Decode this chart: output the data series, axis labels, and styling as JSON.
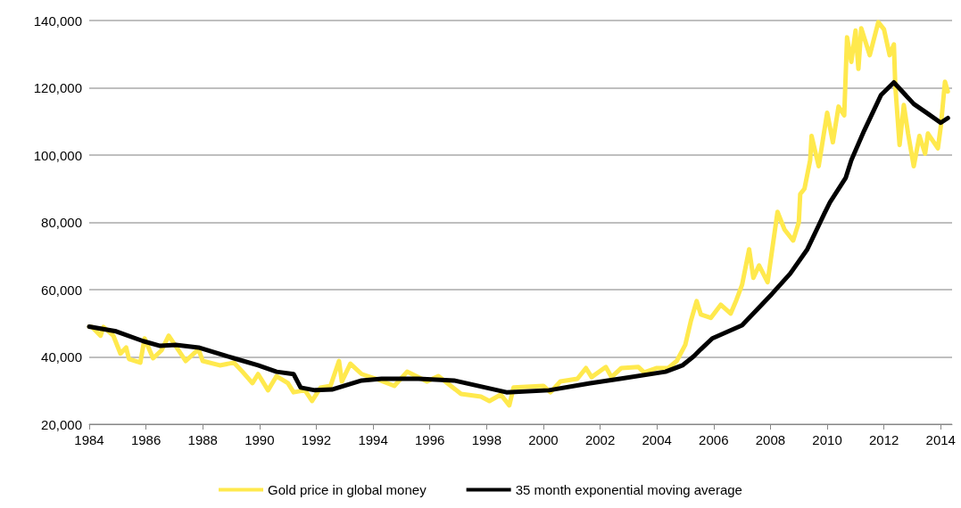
{
  "chart_data": {
    "type": "line",
    "xlim": [
      1984,
      2014.4
    ],
    "xticks": [
      1984,
      1986,
      1988,
      1990,
      1992,
      1994,
      1996,
      1998,
      2000,
      2002,
      2004,
      2006,
      2008,
      2010,
      2012,
      2014
    ],
    "ylim": [
      20000,
      140000
    ],
    "yticks": [
      {
        "value": 20000,
        "label": "20,000"
      },
      {
        "value": 40000,
        "label": "40,000"
      },
      {
        "value": 60000,
        "label": "60,000"
      },
      {
        "value": 80000,
        "label": "80,000"
      },
      {
        "value": 100000,
        "label": "100,000"
      },
      {
        "value": 120000,
        "label": "120,000"
      },
      {
        "value": 140000,
        "label": "140,000"
      }
    ],
    "grid": "y",
    "legend": "bottom",
    "marker": "none",
    "line_style": "solid",
    "series": [
      {
        "name": "Gold price in global money",
        "color": "#ffe94d",
        "x": [
          1984.0,
          1984.1,
          1984.4,
          1984.5,
          1984.85,
          1985.1,
          1985.3,
          1985.4,
          1985.8,
          1985.95,
          1986.25,
          1986.55,
          1986.8,
          1987.4,
          1987.85,
          1988.0,
          1988.6,
          1989.1,
          1989.4,
          1989.75,
          1989.95,
          1990.3,
          1990.6,
          1991.0,
          1991.2,
          1991.6,
          1991.85,
          1992.15,
          1992.5,
          1992.8,
          1992.9,
          1993.2,
          1993.6,
          1994.1,
          1994.75,
          1995.2,
          1995.9,
          1996.3,
          1997.1,
          1997.8,
          1998.1,
          1998.5,
          1998.8,
          1998.95,
          2000.0,
          2000.25,
          2000.6,
          2001.2,
          2001.5,
          2001.7,
          2002.2,
          2002.4,
          2002.75,
          2003.35,
          2003.55,
          2004.0,
          2004.4,
          2004.7,
          2005.0,
          2005.2,
          2005.4,
          2005.55,
          2005.9,
          2006.25,
          2006.6,
          2006.8,
          2007.0,
          2007.25,
          2007.4,
          2007.6,
          2007.9,
          2008.05,
          2008.25,
          2008.5,
          2008.8,
          2009.0,
          2009.05,
          2009.2,
          2009.4,
          2009.45,
          2009.7,
          2010.0,
          2010.2,
          2010.4,
          2010.6,
          2010.7,
          2010.85,
          2011.0,
          2011.1,
          2011.2,
          2011.5,
          2011.8,
          2012.0,
          2012.2,
          2012.35,
          2012.4,
          2012.55,
          2012.7,
          2012.85,
          2013.05,
          2013.25,
          2013.45,
          2013.55,
          2013.9,
          2014.0,
          2014.15,
          2014.25
        ],
        "values": [
          49000,
          48900,
          46300,
          48900,
          46300,
          41000,
          42800,
          39400,
          38300,
          45500,
          39600,
          42000,
          46300,
          38800,
          42300,
          38800,
          37500,
          38300,
          35600,
          32200,
          34900,
          30100,
          34300,
          32200,
          29500,
          30100,
          26900,
          30900,
          31400,
          38800,
          32700,
          38000,
          34900,
          33500,
          31400,
          35600,
          32700,
          34300,
          29000,
          28200,
          26900,
          28800,
          25600,
          30900,
          31400,
          29500,
          32700,
          33500,
          36700,
          34000,
          37000,
          34000,
          36700,
          37000,
          35400,
          36700,
          36700,
          38800,
          43600,
          50800,
          56600,
          52600,
          51600,
          55500,
          52900,
          56900,
          61400,
          72000,
          63500,
          67200,
          62200,
          71200,
          83100,
          77800,
          74600,
          80000,
          88400,
          90000,
          98500,
          105700,
          96700,
          112600,
          103800,
          114400,
          111800,
          135000,
          127700,
          137000,
          125600,
          137700,
          129700,
          139500,
          137400,
          129700,
          132900,
          120500,
          103000,
          114900,
          106400,
          96700,
          105700,
          100400,
          106400,
          102000,
          108300,
          121800,
          118900
        ]
      },
      {
        "name": "35 month exponential moving average",
        "color": "#000000",
        "x": [
          1984.0,
          1984.95,
          1985.9,
          1986.5,
          1987.05,
          1987.85,
          1989.1,
          1989.95,
          1990.6,
          1991.2,
          1991.45,
          1991.95,
          1992.55,
          1993.6,
          1994.3,
          1995.6,
          1996.85,
          1998.7,
          2000.2,
          2001.65,
          2002.7,
          2004.3,
          2004.9,
          2005.3,
          2005.55,
          2005.95,
          2007.0,
          2008.05,
          2008.7,
          2009.3,
          2009.9,
          2010.1,
          2010.65,
          2010.85,
          2011.3,
          2011.9,
          2012.35,
          2013.05,
          2013.55,
          2014.0,
          2014.25
        ],
        "values": [
          49000,
          47600,
          44700,
          43300,
          43600,
          42800,
          39600,
          37500,
          35600,
          34900,
          30900,
          30100,
          30300,
          33000,
          33500,
          33500,
          33000,
          29500,
          30100,
          32200,
          33500,
          35600,
          37500,
          40200,
          42300,
          45500,
          49400,
          58700,
          64800,
          72000,
          82600,
          86000,
          93200,
          98500,
          107200,
          117900,
          121600,
          115200,
          112300,
          109600,
          111000
        ]
      }
    ]
  }
}
